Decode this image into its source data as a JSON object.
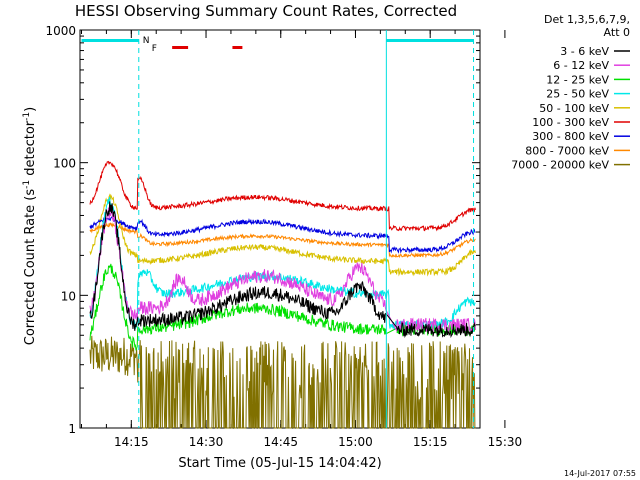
{
  "chart_data": {
    "type": "line",
    "title": "HESSI Observing Summary Count Rates, Corrected",
    "xlabel": "Start Time (05-Jul-15 14:04:42)",
    "ylabel": "Corrected Count Rate (s⁻¹ detector⁻¹)",
    "ylabel_plain": "Corrected Count Rate (s",
    "ylabel_sup1": "-1",
    "ylabel_mid": " detector",
    "ylabel_sup2": "-1",
    "ylabel_end": ")",
    "yscale": "log",
    "ylim": [
      1,
      1000
    ],
    "x_ticks": [
      "14:15",
      "14:30",
      "14:45",
      "15:00",
      "15:15",
      "15:30"
    ],
    "y_ticks": [
      "1",
      "10",
      "100",
      "1000"
    ],
    "x_range_minutes": [
      0,
      75
    ],
    "legend_header": [
      "Det 1,3,5,6,7,9,",
      "Att 0"
    ],
    "series": [
      {
        "name": "3 - 6 keV",
        "color": "#000000"
      },
      {
        "name": "6 - 12 keV",
        "color": "#e040e0"
      },
      {
        "name": "12 - 25 keV",
        "color": "#00e000"
      },
      {
        "name": "25 - 50 keV",
        "color": "#00e8e8"
      },
      {
        "name": "50 - 100 keV",
        "color": "#d8c000"
      },
      {
        "name": "100 - 300 keV",
        "color": "#e00000"
      },
      {
        "name": "300 - 800 keV",
        "color": "#0000e0"
      },
      {
        "name": "800 - 7000 keV",
        "color": "#ff8800"
      },
      {
        "name": "7000 - 20000 keV",
        "color": "#807000"
      }
    ],
    "flags": {
      "n_label": "N",
      "f_label": "F",
      "night_color": "#00e0e0",
      "flare_color": "#e00000"
    },
    "footer": "14-Jul-2017 07:55"
  }
}
